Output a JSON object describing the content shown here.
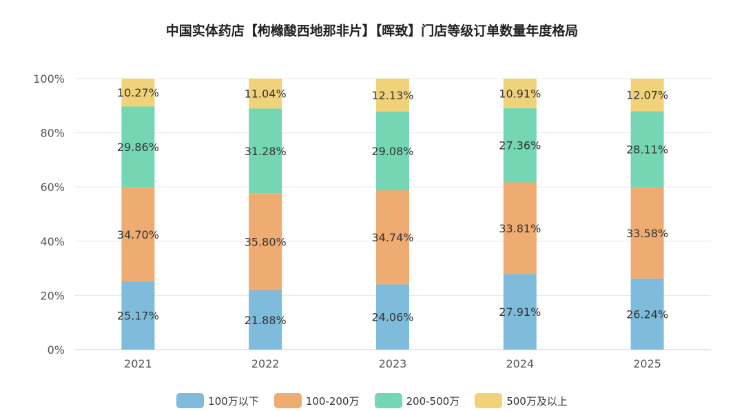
{
  "title": "中国实体药店【枸橼酸西地那非片】【晖致】门店等级订单数量年度格局",
  "chart_data": {
    "type": "bar",
    "stacked": true,
    "percent": true,
    "categories": [
      "2021",
      "2022",
      "2023",
      "2024",
      "2025"
    ],
    "series": [
      {
        "name": "100万以下",
        "color": "#7fbcdc",
        "values": [
          25.17,
          21.88,
          24.06,
          27.91,
          26.24
        ]
      },
      {
        "name": "100-200万",
        "color": "#eeab72",
        "values": [
          34.7,
          35.8,
          34.74,
          33.81,
          33.58
        ]
      },
      {
        "name": "200-500万",
        "color": "#74d6b3",
        "values": [
          29.86,
          31.28,
          29.08,
          27.36,
          28.11
        ]
      },
      {
        "name": "500万及以上",
        "color": "#f0d27a",
        "values": [
          10.27,
          11.04,
          12.13,
          10.91,
          12.07
        ]
      }
    ],
    "ylim": [
      0,
      100
    ],
    "yticks": [
      "0%",
      "20%",
      "40%",
      "60%",
      "80%",
      "100%"
    ],
    "grid": true,
    "legend_position": "bottom"
  }
}
